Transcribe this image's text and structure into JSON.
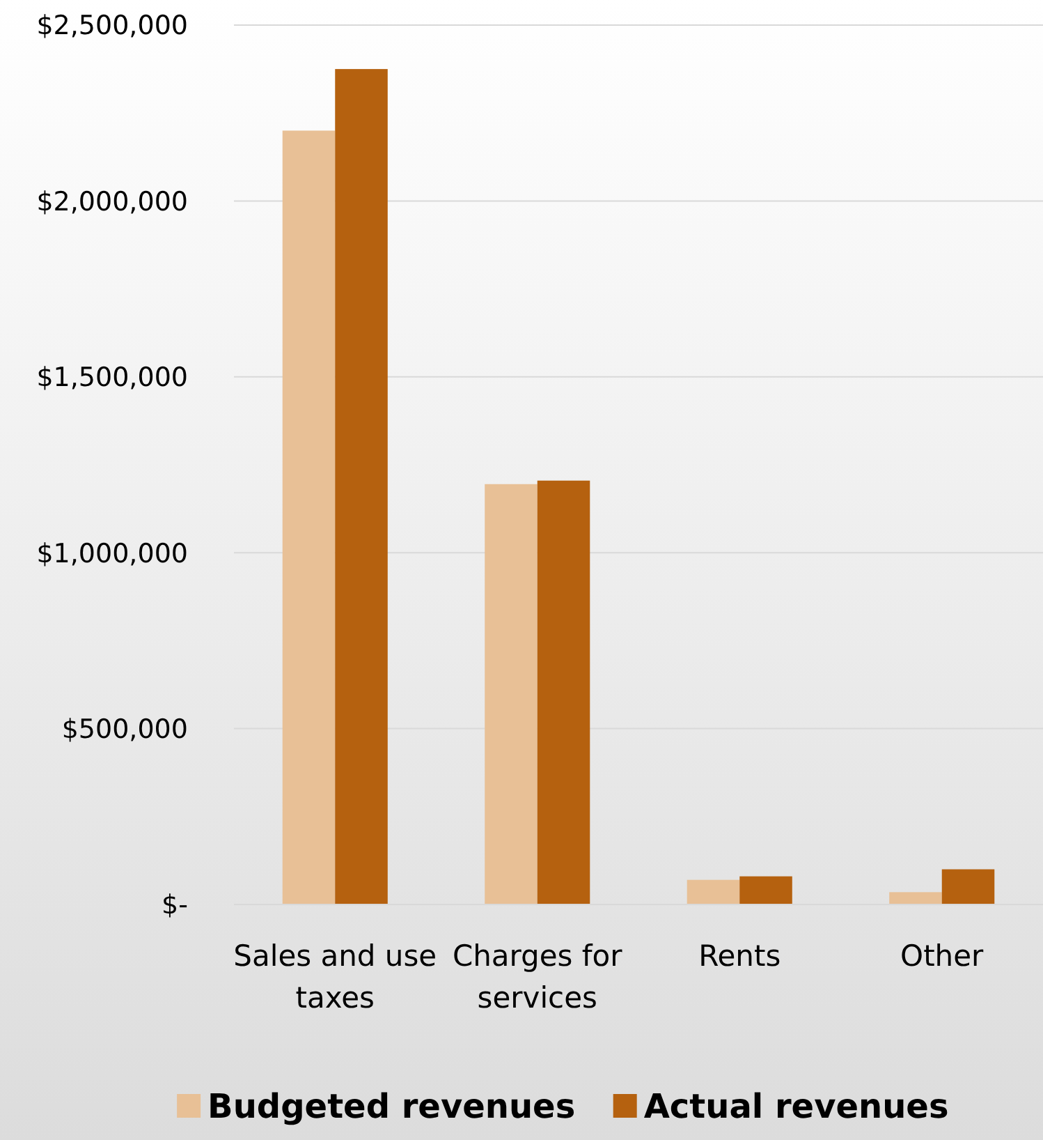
{
  "chart_data": {
    "type": "bar",
    "categories": [
      "Sales and use taxes",
      "Charges for services",
      "Rents",
      "Other"
    ],
    "series": [
      {
        "name": "Budgeted revenues",
        "color": "#e8c096",
        "values": [
          2200000,
          1195000,
          70000,
          35000
        ]
      },
      {
        "name": "Actual revenues",
        "color": "#b5610f",
        "values": [
          2375000,
          1205000,
          80000,
          100000
        ]
      }
    ],
    "ylim": [
      0,
      2500000
    ],
    "yticks": [
      {
        "value": 0,
        "label": "$-"
      },
      {
        "value": 500000,
        "label": "$500,000"
      },
      {
        "value": 1000000,
        "label": "$1,000,000"
      },
      {
        "value": 1500000,
        "label": "$1,500,000"
      },
      {
        "value": 2000000,
        "label": "$2,000,000"
      },
      {
        "value": 2500000,
        "label": "$2,500,000"
      }
    ],
    "grid": "y",
    "legend": "bottom"
  }
}
